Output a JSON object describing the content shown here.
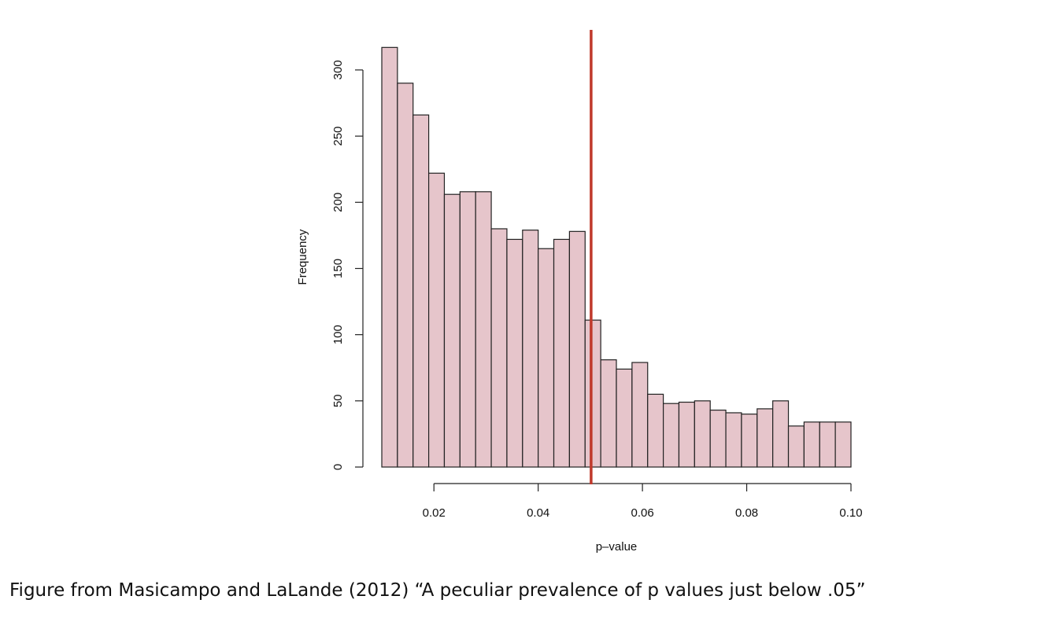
{
  "caption": "Figure from Masicampo and LaLande (2012) “A peculiar prevalence of p values just below .05”",
  "chart_data": {
    "type": "bar",
    "title": "",
    "xlabel": "p–value",
    "ylabel": "Frequency",
    "xlim": [
      0.01,
      0.1
    ],
    "ylim": [
      0,
      330
    ],
    "bin_width": 0.003,
    "bin_starts": [
      0.01,
      0.013,
      0.016,
      0.019,
      0.022,
      0.025,
      0.028,
      0.031,
      0.034,
      0.037,
      0.04,
      0.043,
      0.046,
      0.049,
      0.052,
      0.055,
      0.058,
      0.061,
      0.064,
      0.067,
      0.07,
      0.073,
      0.076,
      0.079,
      0.082,
      0.085,
      0.088,
      0.091,
      0.094,
      0.097
    ],
    "values": [
      317,
      290,
      266,
      222,
      206,
      208,
      208,
      180,
      172,
      179,
      165,
      172,
      178,
      111,
      81,
      74,
      79,
      55,
      48,
      49,
      50,
      43,
      41,
      40,
      44,
      50,
      31,
      34,
      34,
      34
    ],
    "x_ticks": [
      0.02,
      0.04,
      0.06,
      0.08,
      0.1
    ],
    "x_tick_labels": [
      "0.02",
      "0.04",
      "0.06",
      "0.08",
      "0.10"
    ],
    "y_ticks": [
      0,
      50,
      100,
      150,
      200,
      250,
      300
    ],
    "y_tick_labels": [
      "0",
      "50",
      "100",
      "150",
      "200",
      "250",
      "300"
    ],
    "reference_line": {
      "x": 0.05,
      "color": "#c0392b"
    },
    "bar_color": "#e6c5cb",
    "bar_edge_color": "#222222",
    "grid": false
  }
}
